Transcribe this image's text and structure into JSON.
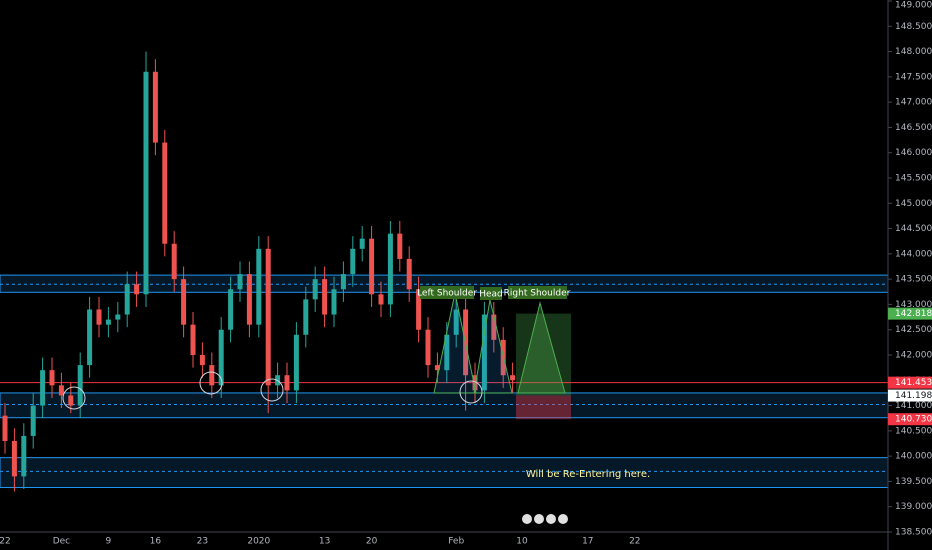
{
  "chart_data": {
    "type": "candlestick",
    "categories": [
      "22",
      null,
      null,
      null,
      null,
      null,
      "Dec",
      null,
      null,
      null,
      null,
      "9",
      null,
      null,
      null,
      null,
      "16",
      null,
      null,
      null,
      null,
      "23",
      null,
      null,
      null,
      null,
      null,
      "2020",
      null,
      null,
      null,
      null,
      null,
      null,
      "13",
      null,
      null,
      null,
      null,
      "20",
      null,
      null,
      null,
      null,
      null,
      null,
      null,
      null,
      "Feb",
      null,
      null,
      null,
      null,
      null,
      null,
      "10",
      null,
      null,
      null,
      null,
      null,
      null,
      "17",
      null,
      null,
      null,
      null,
      "22"
    ],
    "open": [
      140.8,
      140.3,
      139.6,
      140.4,
      141.0,
      141.7,
      141.4,
      141.2,
      141.0,
      141.8,
      142.9,
      142.6,
      142.7,
      142.8,
      143.4,
      143.2,
      147.6,
      146.2,
      144.2,
      143.5,
      142.6,
      142.0,
      141.8,
      141.4,
      142.5,
      143.3,
      143.6,
      142.6,
      144.1,
      141.4,
      141.6,
      141.3,
      142.4,
      143.1,
      143.5,
      142.8,
      143.3,
      143.6,
      144.1,
      144.3,
      143.2,
      143.0,
      144.4,
      143.9,
      143.3,
      142.5,
      141.8,
      141.7,
      142.4,
      142.9,
      141.6,
      141.3,
      142.8,
      142.3,
      141.6,
      null,
      null,
      null,
      null,
      null,
      null,
      null,
      null,
      null,
      null,
      null,
      null,
      null
    ],
    "high": [
      141.05,
      140.55,
      140.65,
      141.25,
      141.95,
      141.95,
      141.65,
      141.45,
      142.05,
      143.15,
      143.15,
      142.95,
      143.05,
      143.65,
      143.65,
      148.0,
      147.85,
      146.45,
      144.45,
      143.75,
      142.85,
      142.25,
      142.05,
      142.75,
      143.55,
      143.85,
      143.85,
      144.35,
      144.35,
      141.85,
      141.85,
      142.65,
      143.35,
      143.75,
      143.75,
      143.55,
      143.85,
      144.35,
      144.55,
      144.55,
      143.45,
      144.65,
      144.65,
      144.15,
      143.55,
      142.75,
      142.05,
      142.65,
      143.15,
      143.15,
      141.85,
      143.05,
      143.05,
      142.55,
      141.85,
      null,
      null,
      null,
      null,
      null,
      null,
      null,
      null,
      null,
      null,
      null,
      null,
      null
    ],
    "low": [
      140.05,
      139.3,
      139.35,
      140.15,
      140.75,
      141.15,
      140.95,
      140.85,
      140.75,
      141.55,
      142.35,
      142.35,
      142.45,
      142.55,
      142.95,
      142.95,
      145.95,
      143.95,
      143.25,
      142.35,
      141.75,
      141.55,
      141.15,
      141.15,
      142.25,
      143.05,
      142.35,
      142.35,
      140.85,
      141.15,
      141.05,
      141.05,
      142.15,
      142.85,
      142.55,
      142.55,
      143.05,
      143.35,
      143.85,
      142.95,
      142.75,
      142.75,
      143.65,
      143.05,
      142.25,
      141.55,
      141.45,
      141.45,
      142.15,
      140.9,
      141.05,
      141.05,
      142.05,
      141.35,
      141.25,
      null,
      null,
      null,
      null,
      null,
      null,
      null,
      null,
      null,
      null,
      null,
      null,
      null
    ],
    "close": [
      140.3,
      139.6,
      140.4,
      141.0,
      141.7,
      141.4,
      141.2,
      141.0,
      141.8,
      142.9,
      142.6,
      142.7,
      142.8,
      143.4,
      143.2,
      147.6,
      146.2,
      144.2,
      143.5,
      142.6,
      142.0,
      141.8,
      141.4,
      142.5,
      143.3,
      143.6,
      142.6,
      144.1,
      141.4,
      141.6,
      141.3,
      142.4,
      143.1,
      143.5,
      142.8,
      143.3,
      143.6,
      144.1,
      144.3,
      143.2,
      143.0,
      144.4,
      143.9,
      143.3,
      142.5,
      141.8,
      141.7,
      142.4,
      142.9,
      141.6,
      141.3,
      142.8,
      142.3,
      141.6,
      141.5,
      null,
      null,
      null,
      null,
      null,
      null,
      null,
      null,
      null,
      null,
      null,
      null,
      null
    ],
    "up_color": "#26a69a",
    "down_color": "#ef5350",
    "ylim": [
      138.5,
      149.0
    ],
    "yticks": [
      {
        "value": 138.5,
        "label": "138.500"
      },
      {
        "value": 139.0,
        "label": "139.000"
      },
      {
        "value": 139.5,
        "label": "139.500"
      },
      {
        "value": 140.0,
        "label": "140.000"
      },
      {
        "value": 140.5,
        "label": "140.500"
      },
      {
        "value": 141.0,
        "label": "141.000"
      },
      {
        "value": 141.5,
        "label": "141.500"
      },
      {
        "value": 142.0,
        "label": "142.000"
      },
      {
        "value": 142.5,
        "label": "142.500"
      },
      {
        "value": 143.0,
        "label": "143.000"
      },
      {
        "value": 143.5,
        "label": "143.500"
      },
      {
        "value": 144.0,
        "label": "144.000"
      },
      {
        "value": 144.5,
        "label": "144.500"
      },
      {
        "value": 145.0,
        "label": "145.000"
      },
      {
        "value": 145.5,
        "label": "145.500"
      },
      {
        "value": 146.0,
        "label": "146.000"
      },
      {
        "value": 146.5,
        "label": "146.500"
      },
      {
        "value": 147.0,
        "label": "147.000"
      },
      {
        "value": 147.5,
        "label": "147.500"
      },
      {
        "value": 148.0,
        "label": "148.000"
      },
      {
        "value": 148.5,
        "label": "148.500"
      },
      {
        "value": 149.0,
        "label": "149.000"
      }
    ],
    "price_labels": [
      {
        "value": 142.818,
        "label": "142.818",
        "color": "#4caf50",
        "line": false
      },
      {
        "value": 141.453,
        "label": "141.453",
        "color": "#f23645",
        "line": true
      },
      {
        "value": 141.198,
        "label": "141.198",
        "color": "#ffffff",
        "line": false
      },
      {
        "value": 140.73,
        "label": "140.730",
        "color": "#f23645",
        "line": false
      }
    ],
    "zones": [
      {
        "top": 143.58,
        "bottom": 143.24,
        "mid": 143.4
      },
      {
        "top": 141.25,
        "bottom": 140.76,
        "mid": 141.02
      },
      {
        "top": 139.97,
        "bottom": 139.38,
        "mid": 139.7
      }
    ],
    "annotations": [
      "Left Shoulder",
      "Head",
      "Right Shoulder",
      "Will be Re-Entering here."
    ]
  }
}
